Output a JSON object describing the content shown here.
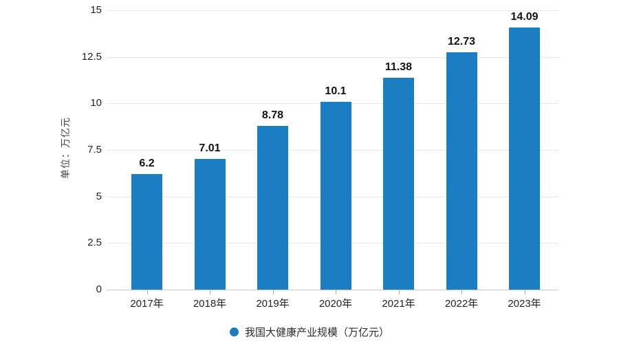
{
  "chart_data": {
    "type": "bar",
    "title": "",
    "categories": [
      "2017年",
      "2018年",
      "2019年",
      "2020年",
      "2021年",
      "2022年",
      "2023年"
    ],
    "values": [
      6.2,
      7.01,
      8.78,
      10.1,
      11.38,
      12.73,
      14.09
    ],
    "value_labels": [
      "6.2",
      "7.01",
      "8.78",
      "10.1",
      "11.38",
      "12.73",
      "14.09"
    ],
    "xlabel": "",
    "ylabel": "单位：万亿元",
    "ylim": [
      0,
      15
    ],
    "yticks": [
      0,
      2.5,
      5,
      7.5,
      10,
      12.5,
      15
    ],
    "ytick_labels": [
      "0",
      "2.5",
      "5",
      "7.5",
      "10",
      "12.5",
      "15"
    ],
    "grid": true,
    "bar_color": "#1b7ec2",
    "gridline_color": "#e7e7e7",
    "legend": {
      "position": "bottom",
      "items": [
        {
          "label": "我国大健康产业规模（万亿元）",
          "color": "#1b7ec2",
          "marker": "circle-icon"
        }
      ]
    }
  }
}
